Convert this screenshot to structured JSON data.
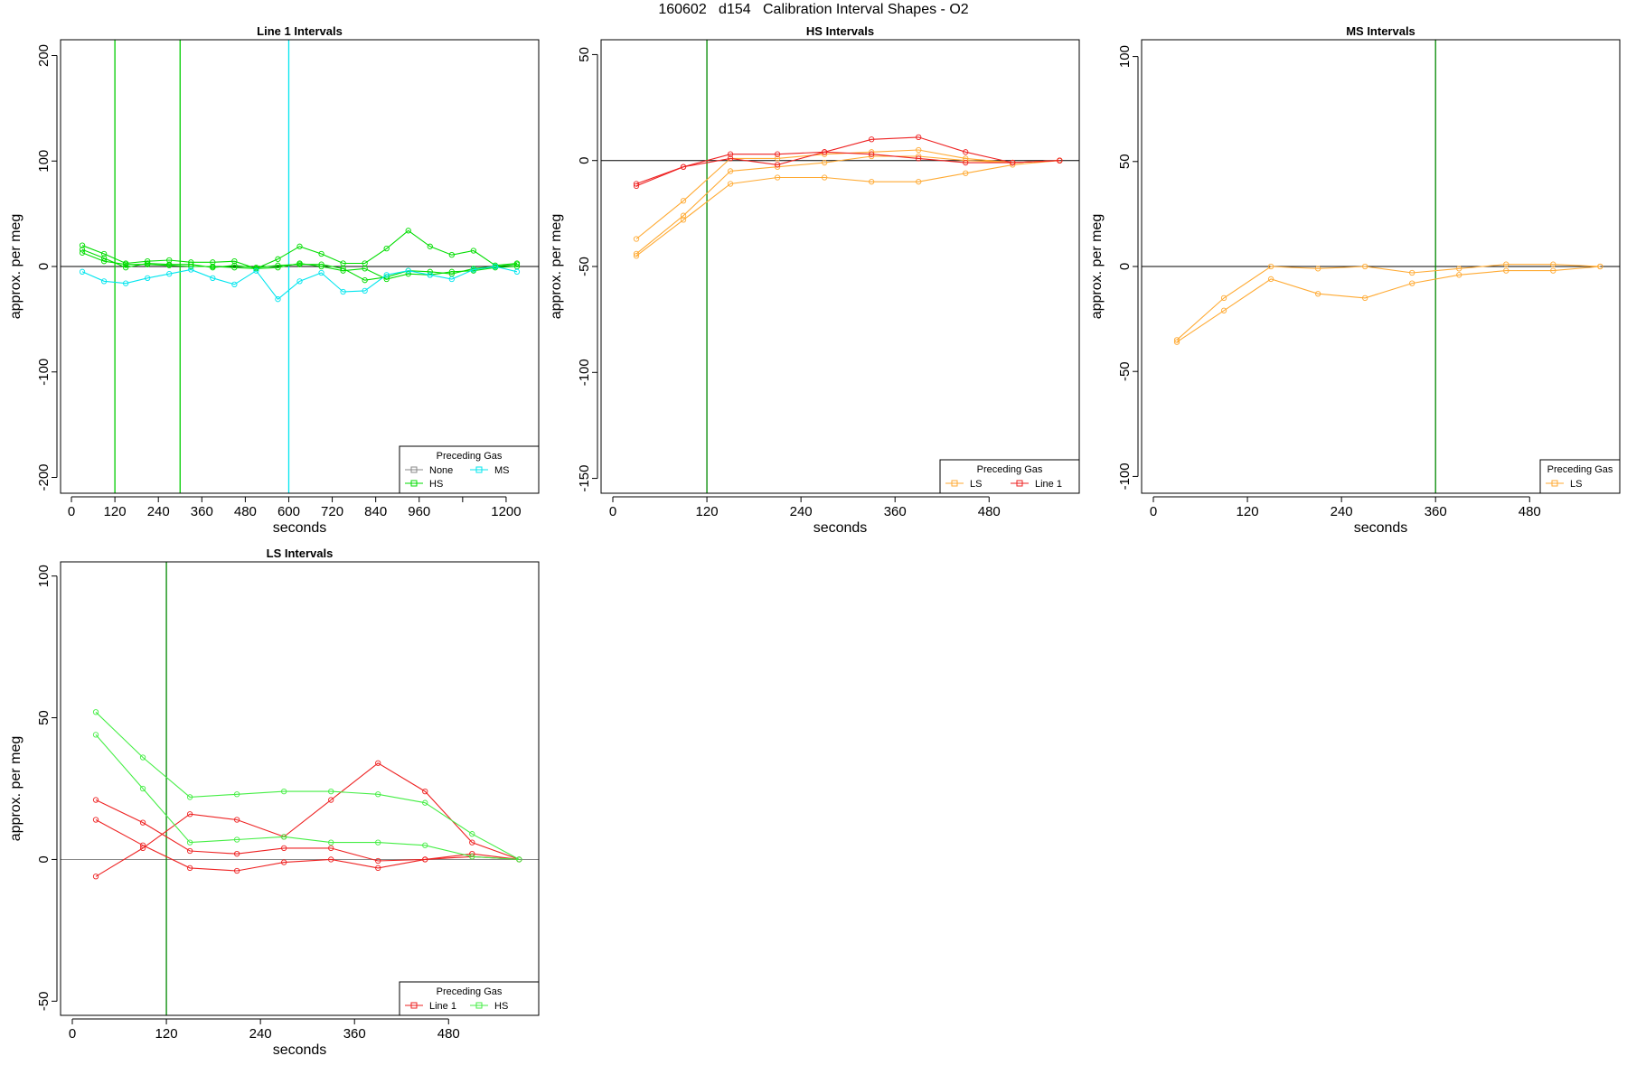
{
  "figure_title": "160602   d154   Calibration Interval Shapes - O2",
  "chart_data": [
    {
      "type": "line",
      "title": "Line 1 Intervals",
      "xlabel": "seconds",
      "ylabel": "approx. per meg",
      "xlim": [
        -30,
        1290
      ],
      "ylim": [
        -215,
        215
      ],
      "xticks": [
        0,
        120,
        240,
        360,
        480,
        600,
        720,
        840,
        960,
        1080,
        1200
      ],
      "xtick_labels": [
        "0",
        "120",
        "240",
        "360",
        "480",
        "600",
        "720",
        "840",
        "960",
        "",
        "1200"
      ],
      "yticks": [
        -200,
        -100,
        0,
        100,
        200
      ],
      "hlines": [
        {
          "y": 0,
          "color": "#000000"
        }
      ],
      "vlines": [
        {
          "x": 120,
          "color": "#00cc00"
        },
        {
          "x": 300,
          "color": "#00cc00"
        },
        {
          "x": 600,
          "color": "#00e5ee"
        }
      ],
      "legend": {
        "title": "Preceding Gas",
        "position": "bottom-right",
        "entries": [
          {
            "label": "None",
            "color": "#888888"
          },
          {
            "label": "MS",
            "color": "#00e5ee"
          },
          {
            "label": "HS",
            "color": "#00dd00"
          }
        ]
      },
      "series": [
        {
          "name": "HS",
          "color": "#00dd00",
          "x": [
            30,
            90,
            150,
            210,
            270,
            330,
            390,
            450,
            510,
            570,
            630,
            690,
            750,
            810,
            870,
            930,
            990,
            1050,
            1110,
            1170,
            1230
          ],
          "y": [
            20,
            12,
            3,
            5,
            6,
            4,
            4,
            5,
            -2,
            7,
            19,
            12,
            3,
            3,
            17,
            34,
            19,
            11,
            15,
            1,
            3
          ]
        },
        {
          "name": "HS",
          "color": "#00dd00",
          "x": [
            30,
            90,
            150,
            210,
            270,
            330,
            390,
            450,
            510,
            570,
            630,
            690,
            750,
            810,
            870,
            930,
            990,
            1050,
            1110,
            1170,
            1230
          ],
          "y": [
            16,
            8,
            -1,
            3,
            2,
            2,
            -1,
            1,
            -1,
            1,
            2,
            2,
            -2,
            -13,
            -10,
            -4,
            -5,
            -7,
            -2,
            0,
            2
          ]
        },
        {
          "name": "HS",
          "color": "#00dd00",
          "x": [
            30,
            90,
            150,
            210,
            270,
            330,
            390,
            450,
            510,
            570,
            630,
            690,
            750,
            810,
            870,
            930,
            990,
            1050,
            1110,
            1170,
            1230
          ],
          "y": [
            13,
            5,
            2,
            2,
            1,
            0,
            0,
            -1,
            -2,
            -1,
            3,
            0,
            -4,
            -2,
            -12,
            -7,
            -8,
            -5,
            -4,
            -1,
            0
          ]
        },
        {
          "name": "MS",
          "color": "#00e5ee",
          "x": [
            30,
            90,
            150,
            210,
            270,
            330,
            390,
            450,
            510,
            570,
            630,
            690,
            750,
            810,
            870,
            930,
            990,
            1050,
            1110,
            1170,
            1230
          ],
          "y": [
            -5,
            -14,
            -16,
            -11,
            -7,
            -3,
            -11,
            -17,
            -4,
            -31,
            -14,
            -6,
            -24,
            -23,
            -8,
            -4,
            -8,
            -12,
            -3,
            0,
            -5
          ]
        }
      ]
    },
    {
      "type": "line",
      "title": "HS Intervals",
      "xlabel": "seconds",
      "ylabel": "approx. per meg",
      "xlim": [
        -15,
        595
      ],
      "ylim": [
        -157,
        57
      ],
      "xticks": [
        0,
        120,
        240,
        360,
        480
      ],
      "xtick_labels": [
        "0",
        "120",
        "240",
        "360",
        "480"
      ],
      "yticks": [
        -150,
        -100,
        -50,
        0,
        50
      ],
      "hlines": [
        {
          "y": 0,
          "color": "#000000"
        }
      ],
      "vlines": [
        {
          "x": 120,
          "color": "#008800"
        }
      ],
      "legend": {
        "title": "Preceding Gas",
        "position": "bottom-right",
        "entries": [
          {
            "label": "LS",
            "color": "#ffaa33"
          },
          {
            "label": "Line 1",
            "color": "#ee2222"
          }
        ]
      },
      "series": [
        {
          "name": "LS",
          "color": "#ffaa33",
          "x": [
            30,
            90,
            150,
            210,
            270,
            330,
            390,
            450,
            510,
            570
          ],
          "y": [
            -37,
            -19,
            1,
            1,
            3,
            4,
            5,
            1,
            -1,
            0
          ]
        },
        {
          "name": "LS",
          "color": "#ffaa33",
          "x": [
            30,
            90,
            150,
            210,
            270,
            330,
            390,
            450,
            510,
            570
          ],
          "y": [
            -44,
            -26,
            -5,
            -3,
            -1,
            2,
            2,
            0,
            -1,
            0
          ]
        },
        {
          "name": "LS",
          "color": "#ffaa33",
          "x": [
            30,
            90,
            150,
            210,
            270,
            330,
            390,
            450,
            510,
            570
          ],
          "y": [
            -45,
            -28,
            -11,
            -8,
            -8,
            -10,
            -10,
            -6,
            -2,
            0
          ]
        },
        {
          "name": "Line 1",
          "color": "#ee2222",
          "x": [
            30,
            90,
            150,
            210,
            270,
            330,
            390,
            450,
            510,
            570
          ],
          "y": [
            -11,
            -3,
            3,
            3,
            4,
            10,
            11,
            4,
            -1,
            0
          ]
        },
        {
          "name": "Line 1",
          "color": "#ee2222",
          "x": [
            30,
            90,
            150,
            210,
            270,
            330,
            390,
            450,
            510,
            570
          ],
          "y": [
            -12,
            -3,
            1,
            -2,
            4,
            3,
            1,
            -1,
            -1,
            0
          ]
        }
      ]
    },
    {
      "type": "line",
      "title": "MS Intervals",
      "xlabel": "seconds",
      "ylabel": "approx. per meg",
      "xlim": [
        -15,
        595
      ],
      "ylim": [
        -108,
        108
      ],
      "xticks": [
        0,
        120,
        240,
        360,
        480
      ],
      "xtick_labels": [
        "0",
        "120",
        "240",
        "360",
        "480"
      ],
      "yticks": [
        -100,
        -50,
        0,
        50,
        100
      ],
      "hlines": [
        {
          "y": 0,
          "color": "#000000"
        }
      ],
      "vlines": [
        {
          "x": 360,
          "color": "#008800"
        }
      ],
      "legend": {
        "title": "Preceding Gas",
        "position": "bottom-right",
        "entries": [
          {
            "label": "LS",
            "color": "#ffaa33"
          }
        ]
      },
      "series": [
        {
          "name": "LS",
          "color": "#ffaa33",
          "x": [
            30,
            90,
            150,
            210,
            270,
            330,
            390,
            450,
            510,
            570
          ],
          "y": [
            -35,
            -15,
            0,
            -1,
            0,
            -3,
            -1,
            1,
            1,
            0
          ]
        },
        {
          "name": "LS",
          "color": "#ffaa33",
          "x": [
            30,
            90,
            150,
            210,
            270,
            330,
            390,
            450,
            510,
            570
          ],
          "y": [
            -36,
            -21,
            -6,
            -13,
            -15,
            -8,
            -4,
            -2,
            -2,
            0
          ]
        }
      ]
    },
    {
      "type": "line",
      "title": "LS Intervals",
      "xlabel": "seconds",
      "ylabel": "approx. per meg",
      "xlim": [
        -15,
        595
      ],
      "ylim": [
        -55,
        105
      ],
      "xticks": [
        0,
        120,
        240,
        360,
        480
      ],
      "xtick_labels": [
        "0",
        "120",
        "240",
        "360",
        "480"
      ],
      "yticks": [
        -50,
        0,
        50,
        100
      ],
      "hlines": [
        {
          "y": 0,
          "color": "#888888"
        }
      ],
      "vlines": [
        {
          "x": 120,
          "color": "#008800"
        }
      ],
      "legend": {
        "title": "Preceding Gas",
        "position": "bottom-right",
        "entries": [
          {
            "label": "Line 1",
            "color": "#ee2222"
          },
          {
            "label": "HS",
            "color": "#44ee44"
          }
        ]
      },
      "series": [
        {
          "name": "Line 1",
          "color": "#ee2222",
          "x": [
            30,
            90,
            150,
            210,
            270,
            330,
            390,
            450,
            510,
            570
          ],
          "y": [
            21,
            13,
            3,
            2,
            4,
            4,
            -0.5,
            0,
            1,
            0
          ]
        },
        {
          "name": "Line 1",
          "color": "#ee2222",
          "x": [
            30,
            90,
            150,
            210,
            270,
            330,
            390,
            450,
            510,
            570
          ],
          "y": [
            14,
            5,
            -3,
            -4,
            -1,
            0,
            -3,
            0,
            2,
            0
          ]
        },
        {
          "name": "Line 1",
          "color": "#ee2222",
          "x": [
            30,
            90,
            150,
            210,
            270,
            330,
            390,
            450,
            510,
            570
          ],
          "y": [
            -6,
            4,
            16,
            14,
            8,
            21,
            34,
            24,
            6,
            0
          ]
        },
        {
          "name": "HS",
          "color": "#44ee44",
          "x": [
            30,
            90,
            150,
            210,
            270,
            330,
            390,
            450,
            510,
            570
          ],
          "y": [
            52,
            36,
            22,
            23,
            24,
            24,
            23,
            20,
            9,
            0
          ]
        },
        {
          "name": "HS",
          "color": "#44ee44",
          "x": [
            30,
            90,
            150,
            210,
            270,
            330,
            390,
            450,
            510,
            570
          ],
          "y": [
            44,
            25,
            6,
            7,
            8,
            6,
            6,
            5,
            1,
            0
          ]
        }
      ]
    }
  ]
}
